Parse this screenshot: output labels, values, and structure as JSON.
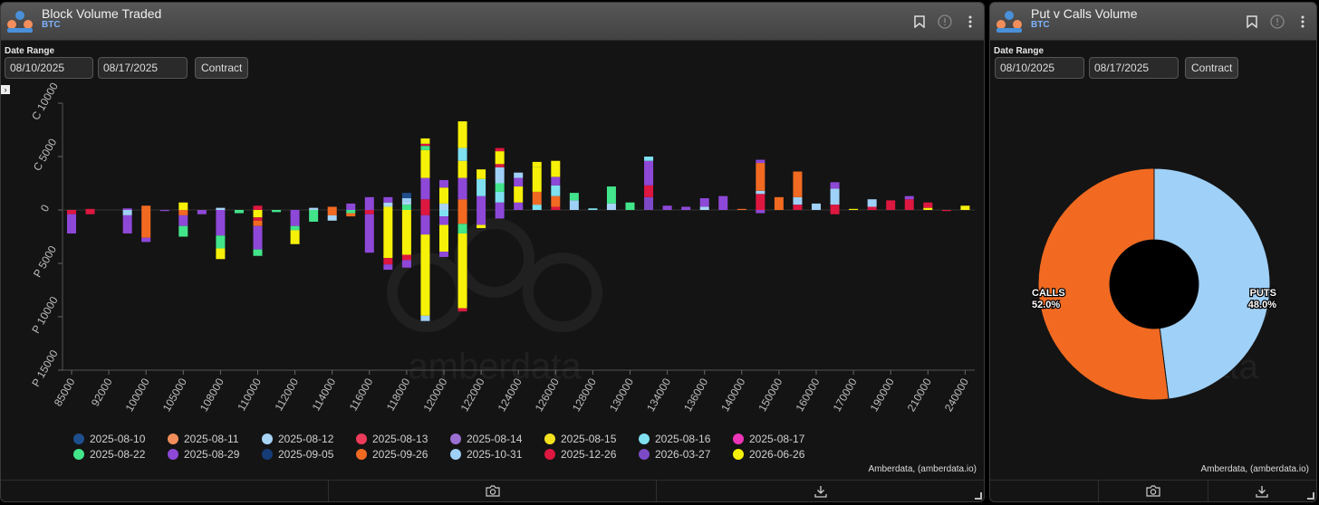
{
  "left_panel": {
    "title": "Block Volume Traded",
    "subtitle": "BTC",
    "date_range_label": "Date Range",
    "start_date": "08/10/2025",
    "end_date": "08/17/2025",
    "contract_button": "Contract",
    "expander_glyph": "›",
    "credit": "Amberdata, (amberdata.io)",
    "watermark": "amberdata"
  },
  "right_panel": {
    "title": "Put v Calls Volume",
    "subtitle": "BTC",
    "date_range_label": "Date Range",
    "start_date": "08/10/2025",
    "end_date": "08/17/2025",
    "contract_button": "Contract",
    "credit": "Amberdata, (amberdata.io)",
    "watermark": "amberdata"
  },
  "icons": [
    "bookmark-icon",
    "info-icon",
    "more-vert-icon",
    "camera-icon",
    "download-icon",
    "resize-handle-icon",
    "logo-icon"
  ],
  "chart_data": [
    {
      "type": "bar",
      "stacked": true,
      "ylim": [
        -15000,
        10000
      ],
      "yticks": [
        {
          "value": 10000,
          "label": "C 10000"
        },
        {
          "value": 5000,
          "label": "C 5000"
        },
        {
          "value": 0,
          "label": "0"
        },
        {
          "value": -5000,
          "label": "P 5000"
        },
        {
          "value": -10000,
          "label": "P 10000"
        },
        {
          "value": -15000,
          "label": "P 15000"
        }
      ],
      "categories": [
        "85000",
        "92000",
        "100000",
        "105000",
        "108000",
        "110000",
        "112000",
        "114000",
        "116000",
        "118000",
        "120000",
        "122000",
        "124000",
        "126000",
        "128000",
        "130000",
        "134000",
        "136000",
        "140000",
        "150000",
        "160000",
        "170000",
        "190000",
        "210000",
        "240000"
      ],
      "strikes_per_tick": 2,
      "series_colors": {
        "2025-08-10": "#1f4e8c",
        "2025-08-11": "#f28e5c",
        "2025-08-12": "#a8d4f5",
        "2025-08-13": "#ee3b5b",
        "2025-08-14": "#9b6fd1",
        "2025-08-15": "#f4e21f",
        "2025-08-16": "#7fe0f0",
        "2025-08-17": "#ee35b8",
        "2025-08-22": "#42e58a",
        "2025-08-29": "#8e48d8",
        "2025-09-05": "#163c78",
        "2025-09-26": "#f26a21",
        "2025-10-31": "#9fd0f8",
        "2025-12-26": "#dd1740",
        "2026-03-27": "#7d4ac7",
        "2026-06-26": "#f7f008"
      },
      "legend": [
        "2025-08-10",
        "2025-08-11",
        "2025-08-12",
        "2025-08-13",
        "2025-08-14",
        "2025-08-15",
        "2025-08-16",
        "2025-08-17",
        "2025-08-22",
        "2025-08-29",
        "2025-09-05",
        "2025-09-26",
        "2025-10-31",
        "2025-12-26",
        "2026-03-27",
        "2026-06-26"
      ],
      "bars": [
        {
          "pos": 0,
          "calls": [],
          "puts": [
            [
              "2025-12-26",
              400
            ],
            [
              "2025-08-29",
              1800
            ]
          ]
        },
        {
          "pos": 1,
          "calls": [
            [
              "2025-12-26",
              100
            ]
          ],
          "puts": [
            [
              "2025-12-26",
              400
            ]
          ]
        },
        {
          "pos": 3,
          "calls": [
            [
              "2025-08-29",
              150
            ]
          ],
          "puts": [
            [
              "2025-10-31",
              500
            ],
            [
              "2025-08-29",
              1700
            ]
          ]
        },
        {
          "pos": 4,
          "calls": [
            [
              "2025-09-26",
              400
            ]
          ],
          "puts": [
            [
              "2025-09-26",
              2600
            ],
            [
              "2025-08-29",
              400
            ]
          ]
        },
        {
          "pos": 5,
          "calls": [],
          "puts": [
            [
              "2025-08-29",
              100
            ]
          ]
        },
        {
          "pos": 6,
          "calls": [
            [
              "2026-06-26",
              700
            ]
          ],
          "puts": [
            [
              "2025-09-26",
              500
            ],
            [
              "2025-08-29",
              1000
            ],
            [
              "2025-08-22",
              1000
            ]
          ]
        },
        {
          "pos": 7,
          "calls": [],
          "puts": [
            [
              "2025-08-29",
              400
            ]
          ]
        },
        {
          "pos": 8,
          "calls": [
            [
              "2025-08-12",
              200
            ]
          ],
          "puts": [
            [
              "2025-08-29",
              2400
            ],
            [
              "2025-08-22",
              1200
            ],
            [
              "2026-06-26",
              1000
            ]
          ]
        },
        {
          "pos": 9,
          "calls": [],
          "puts": [
            [
              "2025-08-22",
              300
            ]
          ]
        },
        {
          "pos": 10,
          "calls": [
            [
              "2025-12-26",
              400
            ]
          ],
          "puts": [
            [
              "2026-06-26",
              700
            ],
            [
              "2025-12-26",
              300
            ],
            [
              "2025-09-26",
              500
            ],
            [
              "2025-08-29",
              2200
            ],
            [
              "2025-08-22",
              600
            ]
          ]
        },
        {
          "pos": 11,
          "calls": [],
          "puts": [
            [
              "2025-08-22",
              200
            ]
          ]
        },
        {
          "pos": 12,
          "calls": [],
          "puts": [
            [
              "2025-08-29",
              1500
            ],
            [
              "2025-08-22",
              400
            ],
            [
              "2026-06-26",
              1300
            ]
          ]
        },
        {
          "pos": 13,
          "calls": [
            [
              "2025-08-12",
              200
            ]
          ],
          "puts": [
            [
              "2025-08-22",
              1100
            ]
          ]
        },
        {
          "pos": 14,
          "calls": [
            [
              "2025-09-26",
              300
            ]
          ],
          "puts": [
            [
              "2025-09-26",
              500
            ],
            [
              "2025-08-12",
              500
            ]
          ]
        },
        {
          "pos": 15,
          "calls": [
            [
              "2025-08-29",
              600
            ]
          ],
          "puts": [
            [
              "2025-08-22",
              300
            ],
            [
              "2025-09-26",
              300
            ]
          ]
        },
        {
          "pos": 16,
          "calls": [
            [
              "2025-08-29",
              1200
            ]
          ],
          "puts": [
            [
              "2025-12-26",
              400
            ],
            [
              "2025-08-29",
              3600
            ]
          ]
        },
        {
          "pos": 17,
          "calls": [
            [
              "2026-06-26",
              300
            ],
            [
              "2025-08-12",
              400
            ],
            [
              "2025-08-29",
              500
            ]
          ],
          "puts": [
            [
              "2026-06-26",
              4500
            ],
            [
              "2025-12-26",
              600
            ],
            [
              "2025-08-29",
              500
            ]
          ]
        },
        {
          "pos": 18,
          "calls": [
            [
              "2025-08-22",
              500
            ],
            [
              "2025-08-12",
              300
            ],
            [
              "2025-10-31",
              300
            ],
            [
              "2025-08-10",
              500
            ]
          ],
          "puts": [
            [
              "2026-06-26",
              4200
            ],
            [
              "2025-12-26",
              500
            ],
            [
              "2025-08-29",
              700
            ]
          ]
        },
        {
          "pos": 19,
          "calls": [
            [
              "2025-12-26",
              1000
            ],
            [
              "2025-08-29",
              2000
            ],
            [
              "2026-06-26",
              2600
            ],
            [
              "2025-08-22",
              400
            ],
            [
              "2025-12-26",
              200
            ],
            [
              "2026-06-26",
              500
            ]
          ],
          "puts": [
            [
              "2025-12-26",
              500
            ],
            [
              "2025-08-29",
              1800
            ],
            [
              "2026-06-26",
              7600
            ],
            [
              "2025-10-31",
              500
            ]
          ]
        },
        {
          "pos": 20,
          "calls": [
            [
              "2025-08-12",
              600
            ],
            [
              "2026-06-26",
              1500
            ],
            [
              "2025-08-29",
              700
            ]
          ],
          "puts": [
            [
              "2025-08-16",
              600
            ],
            [
              "2025-08-29",
              800
            ],
            [
              "2026-06-26",
              2500
            ],
            [
              "2025-08-29",
              500
            ]
          ]
        },
        {
          "pos": 21,
          "calls": [
            [
              "2025-09-26",
              1000
            ],
            [
              "2025-08-29",
              2000
            ],
            [
              "2026-06-26",
              1600
            ],
            [
              "2025-08-16",
              1200
            ],
            [
              "2026-06-26",
              2500
            ]
          ],
          "puts": [
            [
              "2025-09-26",
              1300
            ],
            [
              "2025-08-22",
              900
            ],
            [
              "2026-06-26",
              7000
            ],
            [
              "2025-12-26",
              300
            ]
          ]
        },
        {
          "pos": 22,
          "calls": [
            [
              "2025-08-29",
              1300
            ],
            [
              "2025-08-16",
              1600
            ],
            [
              "2026-06-26",
              900
            ]
          ],
          "puts": [
            [
              "2025-08-29",
              1400
            ],
            [
              "2026-06-26",
              300
            ]
          ]
        },
        {
          "pos": 23,
          "calls": [
            [
              "2025-08-29",
              700
            ],
            [
              "2025-08-16",
              1000
            ],
            [
              "2025-08-22",
              800
            ],
            [
              "2025-10-31",
              1500
            ],
            [
              "2025-12-26",
              300
            ],
            [
              "2026-06-26",
              1200
            ],
            [
              "2025-12-26",
              300
            ]
          ],
          "puts": [
            [
              "2025-08-29",
              800
            ]
          ]
        },
        {
          "pos": 24,
          "calls": [
            [
              "2025-08-29",
              700
            ],
            [
              "2026-06-26",
              1500
            ],
            [
              "2025-08-29",
              800
            ],
            [
              "2025-10-31",
              500
            ]
          ],
          "puts": []
        },
        {
          "pos": 25,
          "calls": [
            [
              "2025-08-16",
              500
            ],
            [
              "2025-09-26",
              1200
            ],
            [
              "2026-06-26",
              2300
            ],
            [
              "2026-06-26",
              500
            ]
          ],
          "puts": []
        },
        {
          "pos": 26,
          "calls": [
            [
              "2025-12-26",
              300
            ],
            [
              "2025-09-26",
              1000
            ],
            [
              "2025-08-16",
              1000
            ],
            [
              "2025-08-29",
              800
            ],
            [
              "2026-06-26",
              1500
            ]
          ],
          "puts": []
        },
        {
          "pos": 27,
          "calls": [
            [
              "2025-10-31",
              900
            ],
            [
              "2025-08-22",
              700
            ]
          ],
          "puts": []
        },
        {
          "pos": 28,
          "calls": [
            [
              "2025-08-16",
              150
            ]
          ],
          "puts": []
        },
        {
          "pos": 29,
          "calls": [
            [
              "2025-08-12",
              600
            ],
            [
              "2025-08-22",
              1600
            ]
          ],
          "puts": []
        },
        {
          "pos": 30,
          "calls": [
            [
              "2025-08-22",
              700
            ]
          ],
          "puts": []
        },
        {
          "pos": 31,
          "calls": [
            [
              "2026-03-27",
              1200
            ],
            [
              "2025-12-26",
              1100
            ],
            [
              "2025-08-29",
              2300
            ],
            [
              "2025-08-16",
              400
            ]
          ],
          "puts": []
        },
        {
          "pos": 32,
          "calls": [
            [
              "2025-08-29",
              400
            ]
          ],
          "puts": []
        },
        {
          "pos": 33,
          "calls": [
            [
              "2025-08-29",
              300
            ]
          ],
          "puts": []
        },
        {
          "pos": 34,
          "calls": [
            [
              "2025-08-12",
              300
            ],
            [
              "2025-08-29",
              800
            ]
          ],
          "puts": []
        },
        {
          "pos": 35,
          "calls": [
            [
              "2025-08-29",
              1300
            ]
          ],
          "puts": []
        },
        {
          "pos": 36,
          "calls": [
            [
              "2025-09-26",
              100
            ]
          ],
          "puts": []
        },
        {
          "pos": 37,
          "calls": [
            [
              "2025-12-26",
              1500
            ],
            [
              "2025-10-31",
              300
            ],
            [
              "2025-09-26",
              2600
            ],
            [
              "2025-08-29",
              300
            ]
          ],
          "puts": [
            [
              "2025-08-29",
              300
            ]
          ]
        },
        {
          "pos": 38,
          "calls": [
            [
              "2025-09-26",
              1200
            ]
          ],
          "puts": []
        },
        {
          "pos": 39,
          "calls": [
            [
              "2025-12-26",
              500
            ],
            [
              "2025-10-31",
              700
            ],
            [
              "2025-09-26",
              2400
            ]
          ],
          "puts": []
        },
        {
          "pos": 40,
          "calls": [
            [
              "2025-10-31",
              600
            ]
          ],
          "puts": []
        },
        {
          "pos": 41,
          "calls": [
            [
              "2025-12-26",
              500
            ],
            [
              "2025-10-31",
              1500
            ],
            [
              "2025-08-29",
              600
            ]
          ],
          "puts": [
            [
              "2025-12-26",
              400
            ]
          ]
        },
        {
          "pos": 42,
          "calls": [
            [
              "2026-06-26",
              100
            ]
          ],
          "puts": []
        },
        {
          "pos": 43,
          "calls": [
            [
              "2025-12-26",
              300
            ],
            [
              "2025-10-31",
              700
            ]
          ],
          "puts": []
        },
        {
          "pos": 44,
          "calls": [
            [
              "2025-12-26",
              900
            ]
          ],
          "puts": []
        },
        {
          "pos": 45,
          "calls": [
            [
              "2025-12-26",
              1000
            ],
            [
              "2025-08-29",
              300
            ]
          ],
          "puts": []
        },
        {
          "pos": 46,
          "calls": [
            [
              "2026-06-26",
              200
            ],
            [
              "2025-12-26",
              500
            ]
          ],
          "puts": []
        },
        {
          "pos": 47,
          "calls": [],
          "puts": [
            [
              "2025-12-26",
              100
            ]
          ]
        },
        {
          "pos": 48,
          "calls": [
            [
              "2026-06-26",
              400
            ]
          ],
          "puts": []
        }
      ]
    },
    {
      "type": "pie",
      "donut": true,
      "slices": [
        {
          "label": "CALLS",
          "percent_label": "52.0%",
          "value": 52.0,
          "color": "#f26a21"
        },
        {
          "label": "PUTS",
          "percent_label": "48.0%",
          "value": 48.0,
          "color": "#9fd0f8"
        }
      ]
    }
  ]
}
